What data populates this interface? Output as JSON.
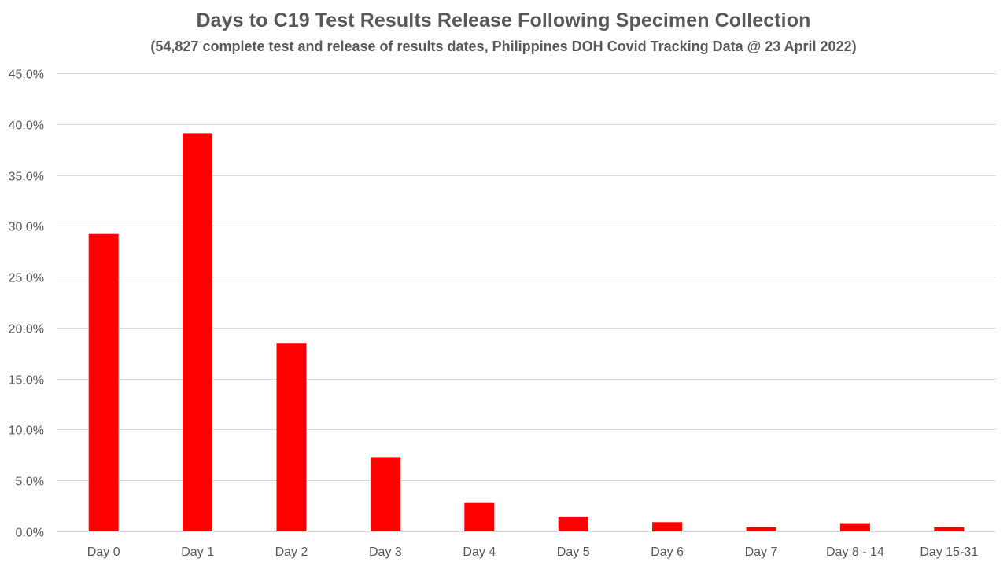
{
  "chart_data": {
    "type": "bar",
    "title": "Days to C19 Test Results Release Following Specimen Collection",
    "subtitle": "(54,827 complete test and release of results dates, Philippines DOH Covid Tracking Data @ 23 April 2022)",
    "xlabel": "",
    "ylabel": "",
    "categories": [
      "Day 0",
      "Day 1",
      "Day 2",
      "Day 3",
      "Day 4",
      "Day 5",
      "Day 6",
      "Day 7",
      "Day 8 - 14",
      "Day 15-31"
    ],
    "values": [
      29.2,
      39.1,
      18.5,
      7.3,
      2.8,
      1.4,
      0.9,
      0.4,
      0.8,
      0.4
    ],
    "ylim": [
      0,
      45
    ],
    "ytick_step": 5,
    "ytick_format": "percent_1dp",
    "grid": true,
    "legend": "none",
    "bar_color": "#FF0000",
    "grid_color": "#D9D9D9"
  }
}
